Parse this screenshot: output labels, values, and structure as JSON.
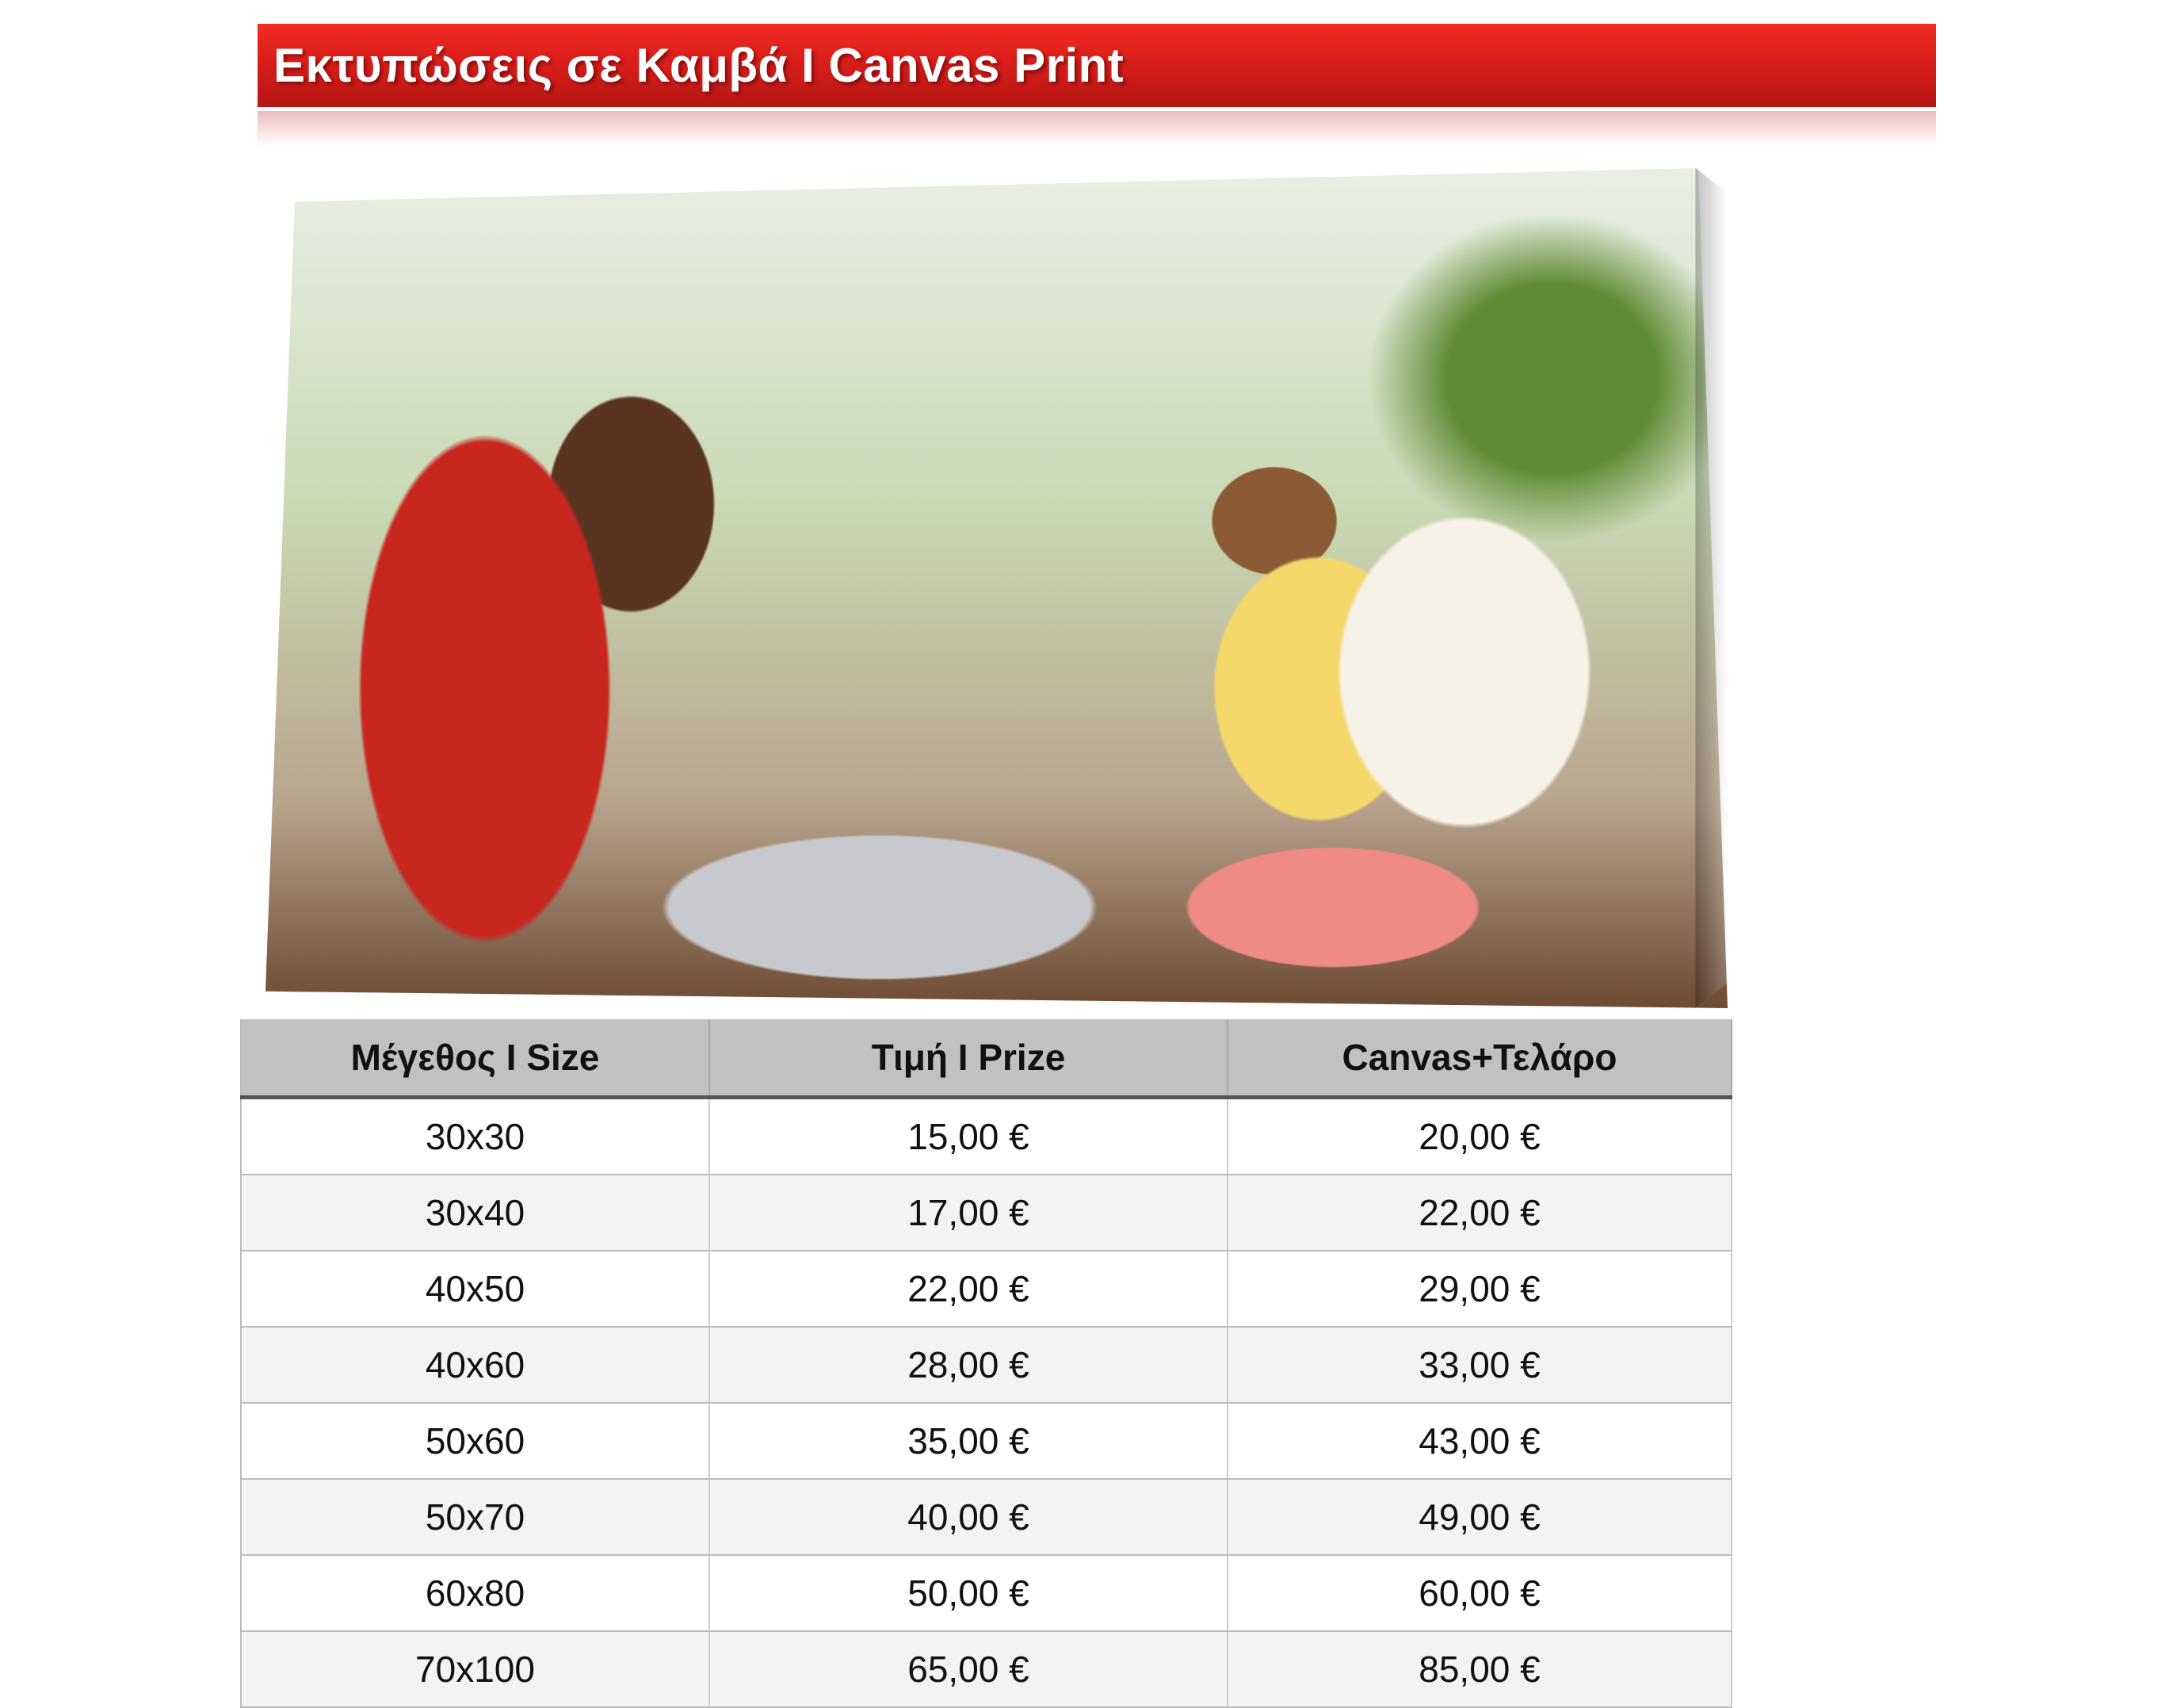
{
  "header": {
    "title": "Εκτυπώσεις σε Καμβά Ι Canvas Print",
    "color": "#d61d1a"
  },
  "table": {
    "columns": [
      "Μέγεθος Ι Size",
      "Τιμή Ι Prize",
      "Canvas+Τελάρο"
    ],
    "rows": [
      [
        "30x30",
        "15,00 €",
        "20,00 €"
      ],
      [
        "30x40",
        "17,00 €",
        "22,00 €"
      ],
      [
        "40x50",
        "22,00 €",
        "29,00 €"
      ],
      [
        "40x60",
        "28,00 €",
        "33,00 €"
      ],
      [
        "50x60",
        "35,00 €",
        "43,00 €"
      ],
      [
        "50x70",
        "40,00 €",
        "49,00 €"
      ],
      [
        "60x80",
        "50,00 €",
        "60,00 €"
      ],
      [
        "70x100",
        "65,00 €",
        "85,00 €"
      ]
    ]
  }
}
